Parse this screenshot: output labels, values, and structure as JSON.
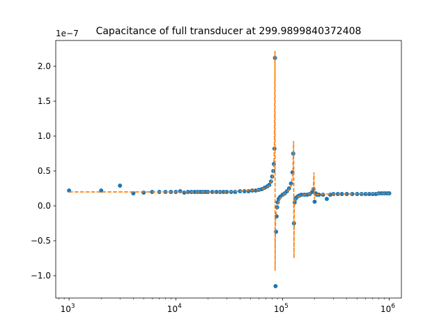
{
  "chart_data": {
    "type": "scatter",
    "title": "Capacitance of full transducer at 299.9899840372408",
    "xlabel": "",
    "ylabel": "",
    "xscale": "log",
    "xlim": [
      750,
      1300000
    ],
    "ylim": [
      -1.32,
      2.37
    ],
    "y_offset_label": "1e−7",
    "x_ticks": [
      {
        "value": 1000,
        "base": "10",
        "exp": "3"
      },
      {
        "value": 10000,
        "base": "10",
        "exp": "4"
      },
      {
        "value": 100000,
        "base": "10",
        "exp": "5"
      },
      {
        "value": 1000000,
        "base": "10",
        "exp": "6"
      }
    ],
    "y_ticks": [
      {
        "value": -1.0,
        "label": "−1.0"
      },
      {
        "value": -0.5,
        "label": "−0.5"
      },
      {
        "value": 0.0,
        "label": "0.0"
      },
      {
        "value": 0.5,
        "label": "0.5"
      },
      {
        "value": 1.0,
        "label": "1.0"
      },
      {
        "value": 1.5,
        "label": "1.5"
      },
      {
        "value": 2.0,
        "label": "2.0"
      }
    ],
    "grid": false,
    "legend": "none",
    "colors": {
      "measured": "#1f77b4",
      "fit": "#ff7f0e"
    },
    "series": [
      {
        "style": "points",
        "x": [
          1000,
          2000,
          3000,
          4000,
          5000,
          6000,
          7000,
          8000,
          9000,
          10000,
          11000,
          12000,
          13000,
          14000,
          15000,
          16000,
          17000,
          18000,
          19000,
          20000,
          22000,
          24000,
          26000,
          28000,
          30000,
          33000,
          36000,
          40000,
          44000,
          48000,
          52000,
          56000,
          60000,
          64000,
          68000,
          72000,
          75000,
          78000,
          80000,
          82000,
          83000,
          84000,
          85000,
          86000,
          87000,
          88000,
          89000,
          90000,
          92000,
          95000,
          100000,
          105000,
          110000,
          115000,
          120000,
          124000,
          126000,
          128000,
          130000,
          132000,
          135000,
          140000,
          145000,
          150000,
          160000,
          170000,
          180000,
          190000,
          195000,
          200000,
          205000,
          210000,
          220000,
          240000,
          260000,
          280000,
          300000,
          330000,
          360000,
          400000,
          450000,
          500000,
          550000,
          600000,
          650000,
          700000,
          750000,
          800000,
          850000,
          900000,
          950000,
          1000000
        ],
        "y": [
          0.22,
          0.22,
          0.29,
          0.18,
          0.19,
          0.2,
          0.2,
          0.2,
          0.2,
          0.2,
          0.21,
          0.19,
          0.2,
          0.2,
          0.2,
          0.2,
          0.2,
          0.2,
          0.2,
          0.2,
          0.2,
          0.2,
          0.2,
          0.2,
          0.2,
          0.2,
          0.2,
          0.21,
          0.21,
          0.21,
          0.22,
          0.22,
          0.23,
          0.24,
          0.26,
          0.28,
          0.3,
          0.35,
          0.42,
          0.5,
          0.6,
          0.82,
          2.12,
          -1.15,
          -0.37,
          -0.15,
          -0.02,
          0.05,
          0.1,
          0.13,
          0.16,
          0.18,
          0.21,
          0.25,
          0.32,
          0.48,
          0.75,
          -0.25,
          0.05,
          0.1,
          0.12,
          0.14,
          0.15,
          0.16,
          0.16,
          0.16,
          0.17,
          0.2,
          0.24,
          0.06,
          0.18,
          0.16,
          0.16,
          0.16,
          0.1,
          0.16,
          0.17,
          0.17,
          0.17,
          0.17,
          0.17,
          0.17,
          0.17,
          0.17,
          0.17,
          0.17,
          0.17,
          0.18,
          0.18,
          0.18,
          0.18,
          0.18
        ]
      },
      {
        "style": "dashed-line",
        "x": [
          1000,
          5000,
          10000,
          20000,
          30000,
          40000,
          50000,
          60000,
          70000,
          75000,
          80000,
          82000,
          83000,
          84000,
          84500,
          85000,
          85200,
          85500,
          86000,
          88000,
          92000,
          100000,
          110000,
          120000,
          125000,
          127000,
          128000,
          128500,
          129000,
          130000,
          135000,
          150000,
          180000,
          195000,
          197000,
          199000,
          201000,
          205000,
          250000,
          400000,
          1000000
        ],
        "y": [
          0.2,
          0.2,
          0.2,
          0.2,
          0.2,
          0.21,
          0.22,
          0.23,
          0.26,
          0.29,
          0.38,
          0.48,
          0.6,
          0.9,
          1.4,
          2.22,
          -0.93,
          -0.5,
          -0.2,
          -0.05,
          0.08,
          0.15,
          0.2,
          0.28,
          0.45,
          0.93,
          -0.75,
          -0.3,
          0.0,
          0.08,
          0.12,
          0.15,
          0.17,
          0.28,
          0.48,
          0.1,
          0.14,
          0.16,
          0.17,
          0.17,
          0.18
        ]
      }
    ]
  }
}
